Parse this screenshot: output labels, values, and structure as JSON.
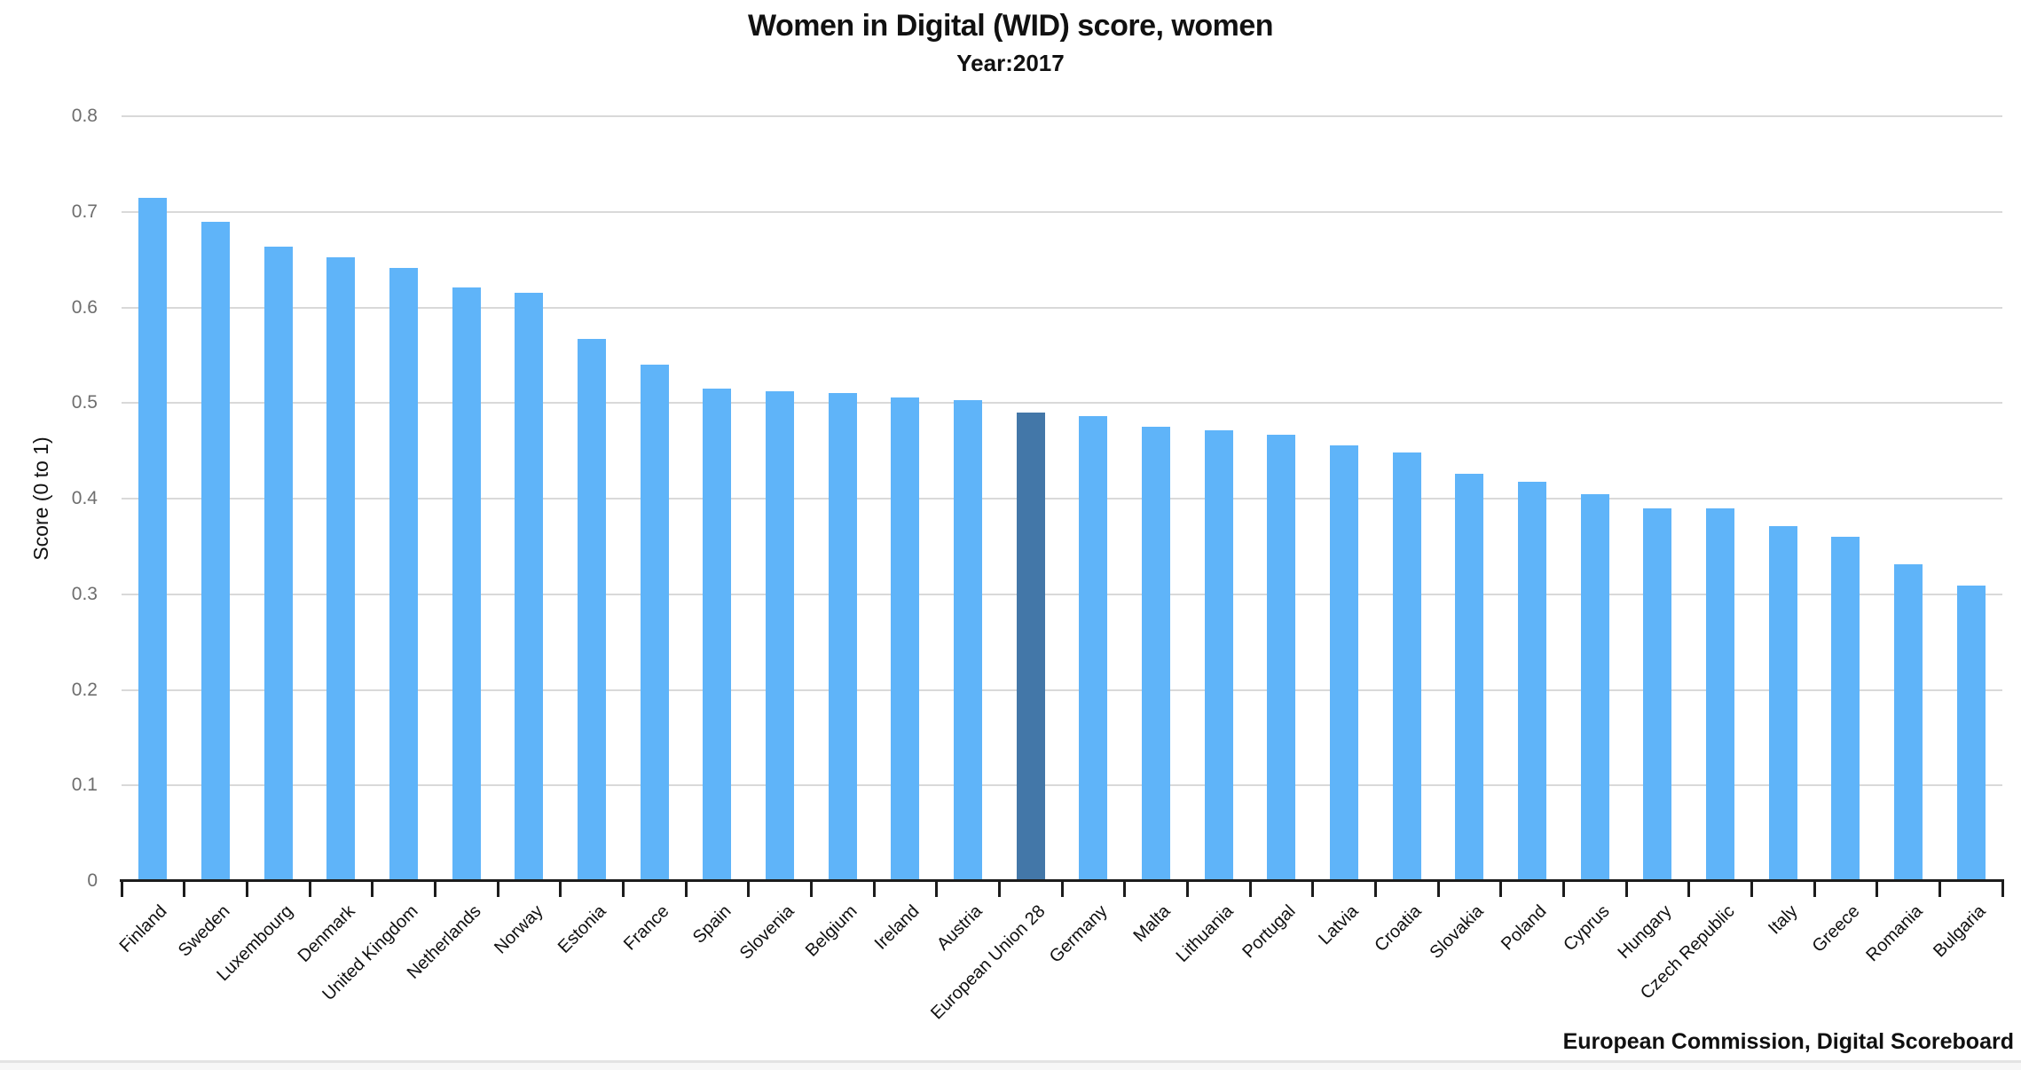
{
  "page": {
    "title": "Women in Digital (WID) score, women",
    "subtitle": "Year:2017",
    "attribution": "European Commission, Digital Scoreboard"
  },
  "colors": {
    "bar": "#5fb4f9",
    "highlight_bar": "#4377a8",
    "gridline": "#d9d9d9",
    "axis": "#1c1c1c",
    "ytick_text": "#6e6e6e",
    "label_text": "#101010"
  },
  "chart_data": {
    "type": "bar",
    "title": "Women in Digital (WID) score, women",
    "subtitle": "Year:2017",
    "xlabel": "",
    "ylabel": "Score (0 to 1)",
    "ylim": [
      0,
      0.8
    ],
    "ytick_step": 0.1,
    "ytick_labels": [
      "0",
      "0.1",
      "0.2",
      "0.3",
      "0.4",
      "0.5",
      "0.6",
      "0.7",
      "0.8"
    ],
    "grid": true,
    "legend": false,
    "highlight_category": "European Union 28",
    "categories": [
      "Finland",
      "Sweden",
      "Luxembourg",
      "Denmark",
      "United Kingdom",
      "Netherlands",
      "Norway",
      "Estonia",
      "France",
      "Spain",
      "Slovenia",
      "Belgium",
      "Ireland",
      "Austria",
      "European Union 28",
      "Germany",
      "Malta",
      "Lithuania",
      "Portugal",
      "Latvia",
      "Croatia",
      "Slovakia",
      "Poland",
      "Cyprus",
      "Hungary",
      "Czech Republic",
      "Italy",
      "Greece",
      "Romania",
      "Bulgaria"
    ],
    "values": [
      0.715,
      0.69,
      0.664,
      0.652,
      0.641,
      0.621,
      0.615,
      0.567,
      0.54,
      0.515,
      0.512,
      0.51,
      0.506,
      0.503,
      0.49,
      0.486,
      0.475,
      0.471,
      0.467,
      0.456,
      0.448,
      0.426,
      0.418,
      0.405,
      0.39,
      0.39,
      0.371,
      0.36,
      0.331,
      0.309
    ]
  }
}
